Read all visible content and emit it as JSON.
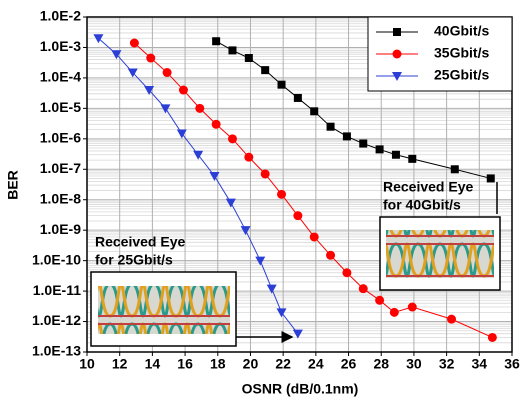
{
  "chart_data": {
    "type": "line",
    "y_scale": "log",
    "grid": true,
    "legend": "upper right",
    "x_label": "OSNR (dB/0.1nm)",
    "y_label": "BER",
    "xlim": [
      10,
      36
    ],
    "xticks": [
      10,
      12,
      14,
      16,
      18,
      20,
      22,
      24,
      26,
      28,
      30,
      32,
      34,
      36
    ],
    "ylim": [
      1e-13,
      0.01
    ],
    "yticks": [
      {
        "value": 1e-13,
        "label": "1.0E-13"
      },
      {
        "value": 1e-12,
        "label": "1.0E-12"
      },
      {
        "value": 1e-11,
        "label": "1.0E-11"
      },
      {
        "value": 1e-10,
        "label": "1.0E-10"
      },
      {
        "value": 1e-09,
        "label": "1.0E-9"
      },
      {
        "value": 1e-08,
        "label": "1.0E-8"
      },
      {
        "value": 1e-07,
        "label": "1.0E-7"
      },
      {
        "value": 1e-06,
        "label": "1.0E-6"
      },
      {
        "value": 1e-05,
        "label": "1.0E-5"
      },
      {
        "value": 0.0001,
        "label": "1.0E-4"
      },
      {
        "value": 0.001,
        "label": "1.0E-3"
      },
      {
        "value": 0.01,
        "label": "1.0E-2"
      }
    ],
    "series": [
      {
        "name": "40Gbit/s",
        "color": "#000000",
        "marker": "square",
        "x": [
          17.9,
          18.9,
          19.9,
          20.9,
          21.9,
          22.9,
          23.9,
          24.9,
          25.9,
          26.9,
          27.9,
          28.9,
          29.9,
          32.5,
          34.7
        ],
        "values": [
          0.0016,
          0.0008,
          0.00045,
          0.00018,
          6e-05,
          2.2e-05,
          8e-06,
          2.5e-06,
          1.2e-06,
          7e-07,
          4.5e-07,
          3e-07,
          2.2e-07,
          1e-07,
          5e-08
        ]
      },
      {
        "name": "35Gbit/s",
        "color": "#ff0000",
        "marker": "circle",
        "x": [
          12.9,
          13.9,
          14.9,
          15.9,
          16.9,
          17.9,
          18.9,
          19.9,
          20.9,
          21.9,
          22.9,
          23.9,
          24.9,
          25.9,
          26.9,
          27.9,
          28.8,
          29.9,
          32.3,
          34.8
        ],
        "values": [
          0.0014,
          0.00045,
          0.00015,
          4e-05,
          1e-05,
          3e-06,
          1e-06,
          2.5e-07,
          7e-08,
          1.5e-08,
          3e-09,
          6e-10,
          1.5e-10,
          4e-11,
          1.2e-11,
          5e-12,
          2e-12,
          3e-12,
          1.2e-12,
          3e-13
        ]
      },
      {
        "name": "25Gbit/s",
        "color": "#2b3fd6",
        "marker": "triangle-down",
        "x": [
          10.7,
          11.8,
          12.8,
          13.8,
          14.8,
          15.8,
          16.8,
          17.8,
          18.8,
          19.7,
          20.6,
          21.3,
          21.9,
          22.9
        ],
        "values": [
          0.002,
          0.0006,
          0.00015,
          4e-05,
          1e-05,
          1.5e-06,
          3e-07,
          6e-08,
          8e-09,
          1e-09,
          1e-10,
          1.2e-11,
          2e-12,
          4e-13
        ]
      }
    ],
    "annotations": [
      {
        "lines": [
          "Received Eye",
          "for 40Gbit/s"
        ]
      },
      {
        "lines": [
          "Received Eye",
          "for 25Gbit/s"
        ]
      }
    ]
  }
}
